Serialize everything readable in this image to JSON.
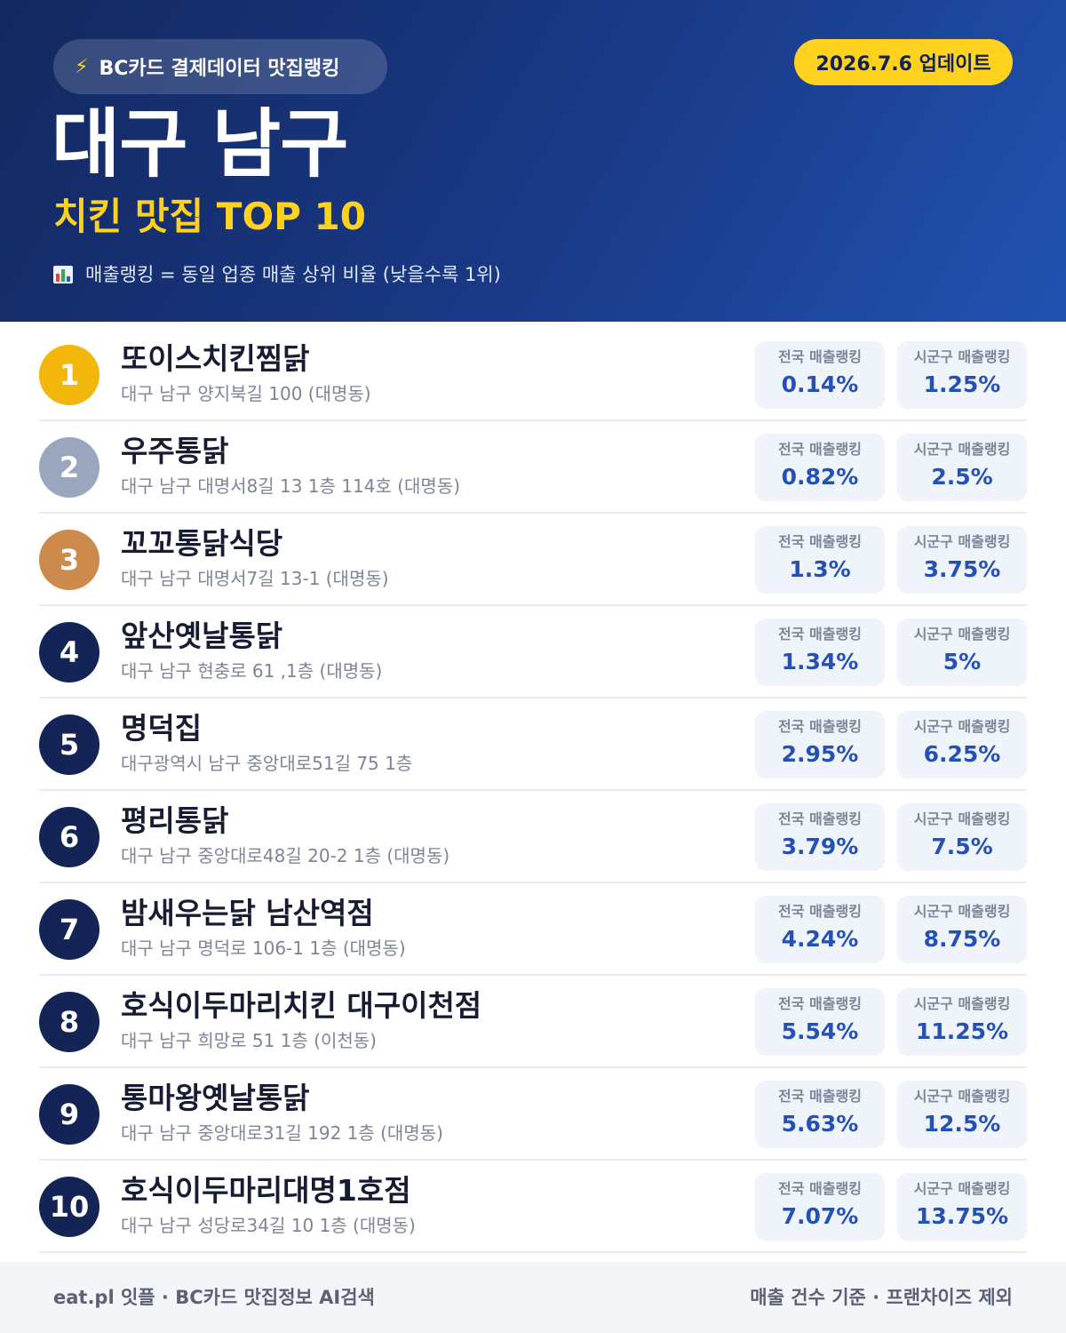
{
  "header": {
    "source_label": "BC카드 결제데이터 맛집랭킹",
    "source_icon": "lightning-bolt-icon",
    "update_label": "2026.7.6 업데이트",
    "region": "대구 남구",
    "subtitle": "치킨 맛집 TOP 10",
    "note": "매출랭킹 = 동일 업종 매출 상위 비율 (낮을수록 1위)",
    "note_icon": "bar-chart-icon"
  },
  "labels": {
    "national": "전국 매출랭킹",
    "local": "시군구 매출랭킹"
  },
  "colors": {
    "accent_yellow": "#ffd21f",
    "header_navy": "#13285f",
    "rank_gold": "#f3b70c",
    "rank_silver": "#9aa6bd",
    "rank_bronze": "#cc8a4c",
    "value_blue": "#2551b5"
  },
  "restaurants": [
    {
      "rank": "1",
      "name": "또이스치킨찜닭",
      "address": "대구 남구 양지북길 100 (대명동)",
      "national": "0.14%",
      "local": "1.25%"
    },
    {
      "rank": "2",
      "name": "우주통닭",
      "address": "대구 남구 대명서8길 13 1층 114호 (대명동)",
      "national": "0.82%",
      "local": "2.5%"
    },
    {
      "rank": "3",
      "name": "꼬꼬통닭식당",
      "address": "대구 남구 대명서7길 13-1 (대명동)",
      "national": "1.3%",
      "local": "3.75%"
    },
    {
      "rank": "4",
      "name": "앞산옛날통닭",
      "address": "대구 남구 현충로 61 ,1층 (대명동)",
      "national": "1.34%",
      "local": "5%"
    },
    {
      "rank": "5",
      "name": "명덕집",
      "address": "대구광역시 남구 중앙대로51길 75 1층",
      "national": "2.95%",
      "local": "6.25%"
    },
    {
      "rank": "6",
      "name": "평리통닭",
      "address": "대구 남구 중앙대로48길 20-2 1층 (대명동)",
      "national": "3.79%",
      "local": "7.5%"
    },
    {
      "rank": "7",
      "name": "밤새우는닭 남산역점",
      "address": "대구 남구 명덕로 106-1 1층 (대명동)",
      "national": "4.24%",
      "local": "8.75%"
    },
    {
      "rank": "8",
      "name": "호식이두마리치킨 대구이천점",
      "address": "대구 남구 희망로 51 1층 (이천동)",
      "national": "5.54%",
      "local": "11.25%"
    },
    {
      "rank": "9",
      "name": "통마왕옛날통닭",
      "address": "대구 남구 중앙대로31길 192 1층 (대명동)",
      "national": "5.63%",
      "local": "12.5%"
    },
    {
      "rank": "10",
      "name": "호식이두마리대명1호점",
      "address": "대구 남구 성당로34길 10 1층 (대명동)",
      "national": "7.07%",
      "local": "13.75%"
    }
  ],
  "footer": {
    "left": "eat.pl 잇플 · BC카드 맛집정보 AI검색",
    "right": "매출 건수 기준 · 프랜차이즈 제외"
  }
}
